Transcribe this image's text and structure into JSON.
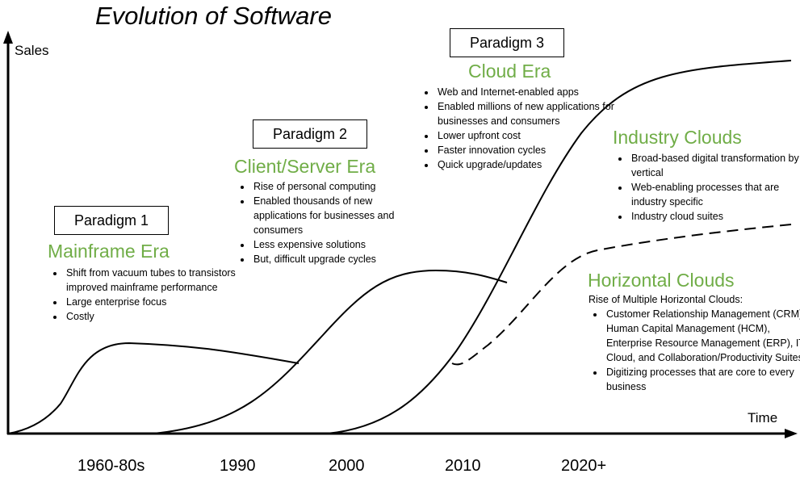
{
  "title": "Evolution of Software",
  "axes": {
    "y_label": "Sales",
    "x_label": "Time",
    "x_ticks": [
      "1960-80s",
      "1990",
      "2000",
      "2010",
      "2020+"
    ]
  },
  "accent_color": "#70ad47",
  "paradigms": [
    {
      "box": "Paradigm 1",
      "era": "Mainframe Era",
      "bullets": [
        "Shift from vacuum tubes to transistors improved mainframe performance",
        "Large enterprise focus",
        "Costly"
      ]
    },
    {
      "box": "Paradigm 2",
      "era": "Client/Server Era",
      "bullets": [
        "Rise of personal computing",
        "Enabled thousands of new applications for businesses and consumers",
        "Less expensive solutions",
        "But, difficult upgrade cycles"
      ]
    },
    {
      "box": "Paradigm 3",
      "era": "Cloud Era",
      "bullets": [
        "Web and Internet-enabled apps",
        "Enabled millions of new applications for businesses and consumers",
        "Lower upfront cost",
        "Faster innovation cycles",
        "Quick upgrade/updates"
      ]
    }
  ],
  "industry": {
    "era": "Industry Clouds",
    "bullets": [
      "Broad-based digital transformation by vertical",
      "Web-enabling processes that are industry specific",
      "Industry cloud suites"
    ]
  },
  "horizontal": {
    "era": "Horizontal Clouds",
    "intro": "Rise of Multiple Horizontal Clouds:",
    "bullets": [
      "Customer Relationship Management (CRM), Human Capital Management (HCM), Enterprise Resource Management (ERP), IT Cloud, and Collaboration/Productivity Suites",
      "Digitizing processes that are core to every business"
    ]
  }
}
